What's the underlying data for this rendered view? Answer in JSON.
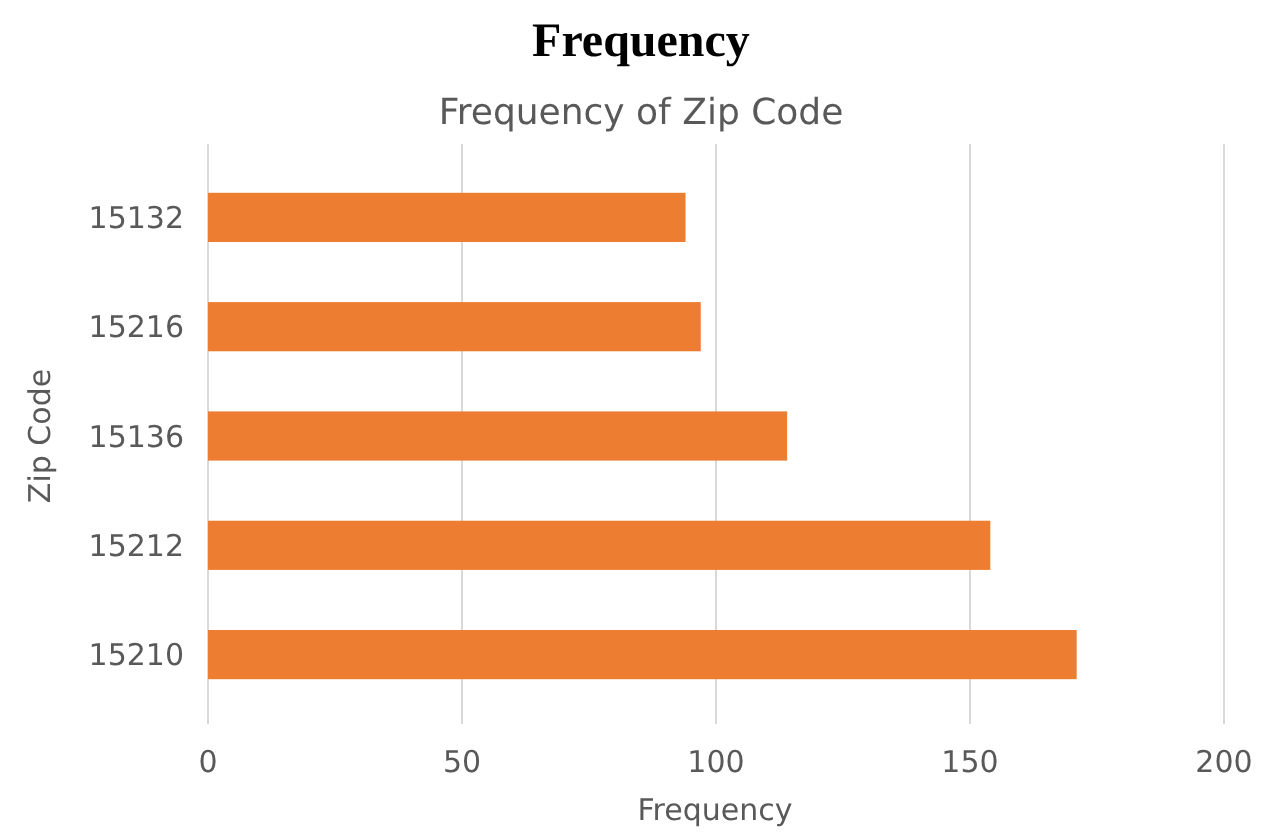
{
  "chart_data": {
    "type": "bar",
    "title": "Frequency",
    "subtitle": "Frequency of Zip Code",
    "xlabel": "Frequency",
    "ylabel": "Zip Code",
    "orientation": "horizontal",
    "categories": [
      "15132",
      "15216",
      "15136",
      "15212",
      "15210"
    ],
    "values": [
      94,
      97,
      114,
      154,
      171
    ],
    "color": "#ed7d31",
    "xlim": [
      0,
      200
    ],
    "xticks": [
      0,
      50,
      100,
      150,
      200
    ],
    "grid": "x"
  }
}
